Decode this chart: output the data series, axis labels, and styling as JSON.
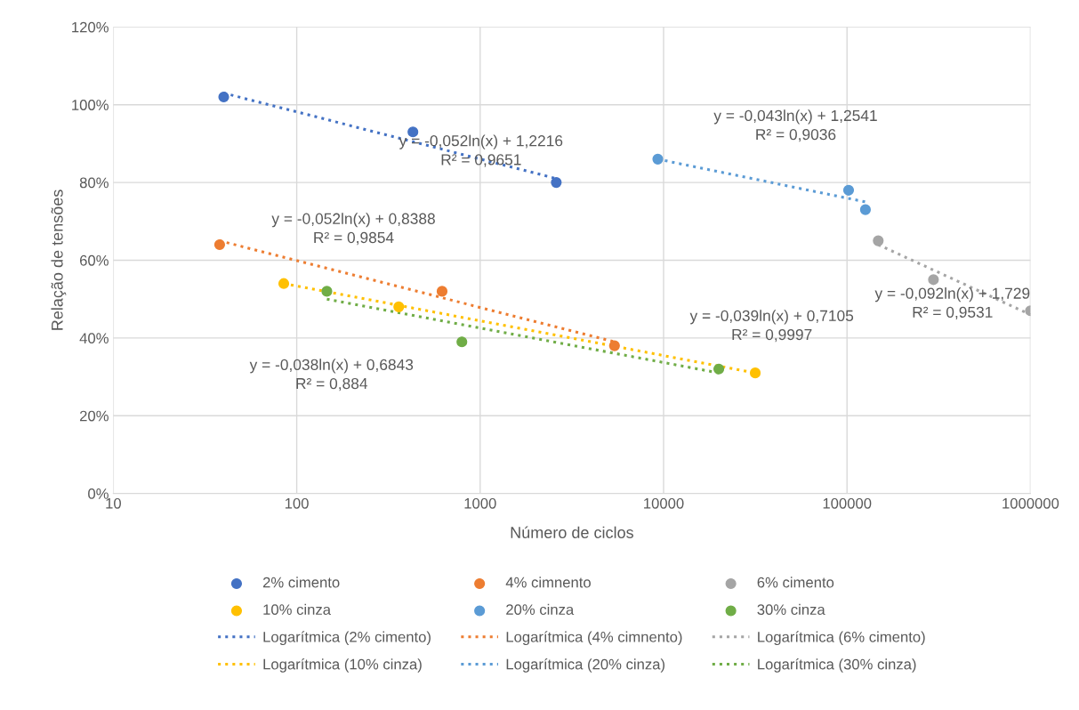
{
  "chart_data": {
    "type": "scatter",
    "xlabel": "Número de ciclos",
    "ylabel": "Relação de tensões",
    "log": "x",
    "grid": true,
    "legend": "bottom",
    "marker": "circle",
    "xlim": [
      10,
      1000000
    ],
    "xticks": [
      10,
      100,
      1000,
      10000,
      100000,
      1000000
    ],
    "ylim": [
      0,
      120
    ],
    "yticks": [
      {
        "value": 0,
        "label": "0%"
      },
      {
        "value": 20,
        "label": "20%"
      },
      {
        "value": 40,
        "label": "40%"
      },
      {
        "value": 60,
        "label": "60%"
      },
      {
        "value": 80,
        "label": "80%"
      },
      {
        "value": 100,
        "label": "100%"
      },
      {
        "value": 120,
        "label": "120%"
      }
    ],
    "series": [
      {
        "name": "2% cimento",
        "color": "#4472c4",
        "x": [
          40,
          430,
          2600
        ],
        "values": [
          102,
          93,
          80
        ]
      },
      {
        "name": "4% cimnento",
        "color": "#ed7d31",
        "x": [
          38,
          620,
          5400
        ],
        "values": [
          64,
          52,
          38
        ]
      },
      {
        "name": "6% cimento",
        "color": "#a5a5a5",
        "x": [
          148000,
          296000,
          1000000
        ],
        "values": [
          65,
          55,
          47
        ]
      },
      {
        "name": "10% cinza",
        "color": "#ffc000",
        "x": [
          85,
          360,
          31600
        ],
        "values": [
          54,
          48,
          31
        ]
      },
      {
        "name": "20% cinza",
        "color": "#5b9bd5",
        "x": [
          9300,
          102000,
          126000
        ],
        "values": [
          86,
          78,
          73
        ]
      },
      {
        "name": "30% cinza",
        "color": "#70ad47",
        "x": [
          146,
          795,
          20000
        ],
        "values": [
          52,
          39,
          32
        ]
      },
      {
        "name": "Logarítmica (2% cimento)",
        "type": "line",
        "line_style": "dotted",
        "marker": "none",
        "color": "#4472c4",
        "x": [
          40,
          2600
        ],
        "values": [
          103,
          81
        ]
      },
      {
        "name": "Logarítmica (4% cimnento)",
        "type": "line",
        "line_style": "dotted",
        "marker": "none",
        "color": "#ed7d31",
        "x": [
          38,
          5400
        ],
        "values": [
          65,
          39
        ]
      },
      {
        "name": "Logarítmica (6% cimento)",
        "type": "line",
        "line_style": "dotted",
        "marker": "none",
        "color": "#a5a5a5",
        "x": [
          148000,
          1000000
        ],
        "values": [
          64,
          46
        ]
      },
      {
        "name": "Logarítmica (10% cinza)",
        "type": "line",
        "line_style": "dotted",
        "marker": "none",
        "color": "#ffc000",
        "x": [
          85,
          31600
        ],
        "values": [
          54,
          31
        ]
      },
      {
        "name": "Logarítmica (20% cinza)",
        "type": "line",
        "line_style": "dotted",
        "marker": "none",
        "color": "#5b9bd5",
        "x": [
          9300,
          126000
        ],
        "values": [
          86,
          75
        ]
      },
      {
        "name": "Logarítmica (30% cinza)",
        "type": "line",
        "line_style": "dotted",
        "marker": "none",
        "color": "#70ad47",
        "x": [
          146,
          20000
        ],
        "values": [
          50,
          31
        ]
      }
    ],
    "annotations": [
      "y = -0,052ln(x) + 1,2216\nR² = 0,9651",
      "y = -0,052ln(x) + 0,8388\nR² = 0,9854",
      "y = -0,092ln(x) + 1,729\nR² = 0,9531",
      "y = -0,039ln(x) + 0,7105\nR² = 0,9997",
      "y = -0,043ln(x) + 1,2541\nR² = 0,9036",
      "y = -0,038ln(x) + 0,6843\nR² = 0,884"
    ]
  }
}
